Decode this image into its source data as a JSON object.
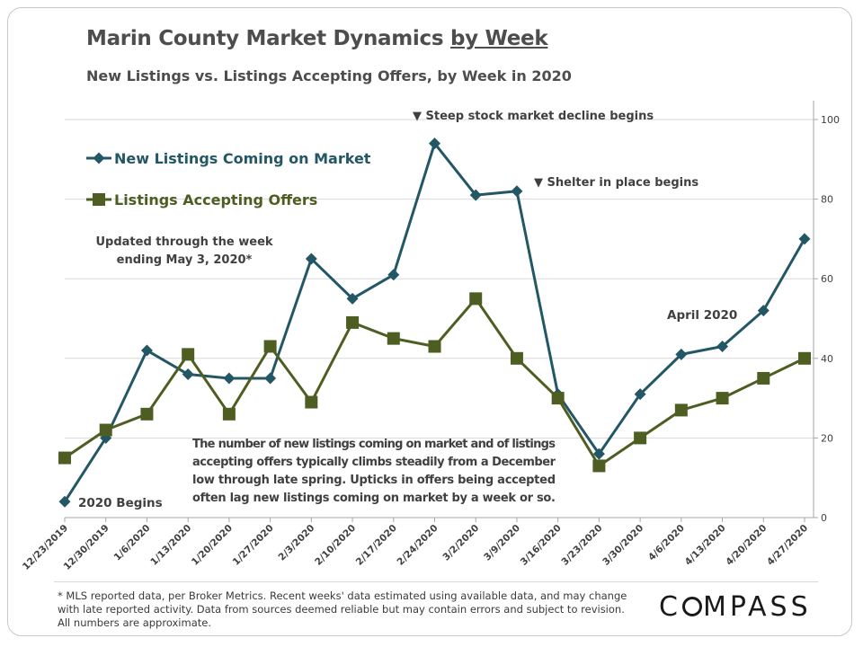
{
  "header": {
    "title_main": "Marin County Market Dynamics ",
    "title_underlined": "by Week",
    "subtitle": "New Listings vs. Listings Accepting Offers, by Week in 2020"
  },
  "chart_data": {
    "type": "line",
    "categories": [
      "12/23/2019",
      "12/30/2019",
      "1/6/2020",
      "1/13/2020",
      "1/20/2020",
      "1/27/2020",
      "2/3/2020",
      "2/10/2020",
      "2/17/2020",
      "2/24/2020",
      "3/2/2020",
      "3/9/2020",
      "3/16/2020",
      "3/23/2020",
      "3/30/2020",
      "4/6/2020",
      "4/13/2020",
      "4/20/2020",
      "4/27/2020"
    ],
    "series": [
      {
        "name": "New Listings Coming on Market",
        "color": "#245766",
        "marker": "diamond",
        "values": [
          4,
          20,
          42,
          36,
          35,
          35,
          65,
          55,
          61,
          94,
          81,
          82,
          31,
          16,
          31,
          41,
          43,
          52,
          70
        ]
      },
      {
        "name": "Listings Accepting Offers",
        "color": "#4e5e22",
        "marker": "square",
        "values": [
          15,
          22,
          26,
          41,
          26,
          43,
          29,
          49,
          45,
          43,
          55,
          40,
          30,
          13,
          20,
          27,
          30,
          35,
          40
        ]
      }
    ],
    "ylim": [
      0,
      100
    ],
    "yticks": [
      0,
      20,
      40,
      60,
      80,
      100
    ],
    "y_axis_side": "right",
    "grid": true,
    "legend_placement": "top-left",
    "annotations": {
      "stock": "▼ Steep stock market decline begins",
      "shelter": "▼ Shelter in place begins",
      "april": "April 2020",
      "begins": "2020 Begins",
      "updated_1": "Updated through the week",
      "updated_2": "ending May 3, 2020*",
      "note_lines": [
        "The number of new listings coming on market and of listings",
        "accepting offers typically climbs steadily from a December",
        "low through late spring. Upticks in offers being accepted",
        "often lag new listings coming on market by a week or so."
      ]
    }
  },
  "footer": {
    "footnote": "* MLS reported data, per Broker Metrics. Recent weeks' data estimated using available data, and may change with late reported activity. Data from sources deemed reliable but may contain errors and subject to revision. All numbers are approximate.",
    "logo_a": "C",
    "logo_b": "MPASS"
  }
}
